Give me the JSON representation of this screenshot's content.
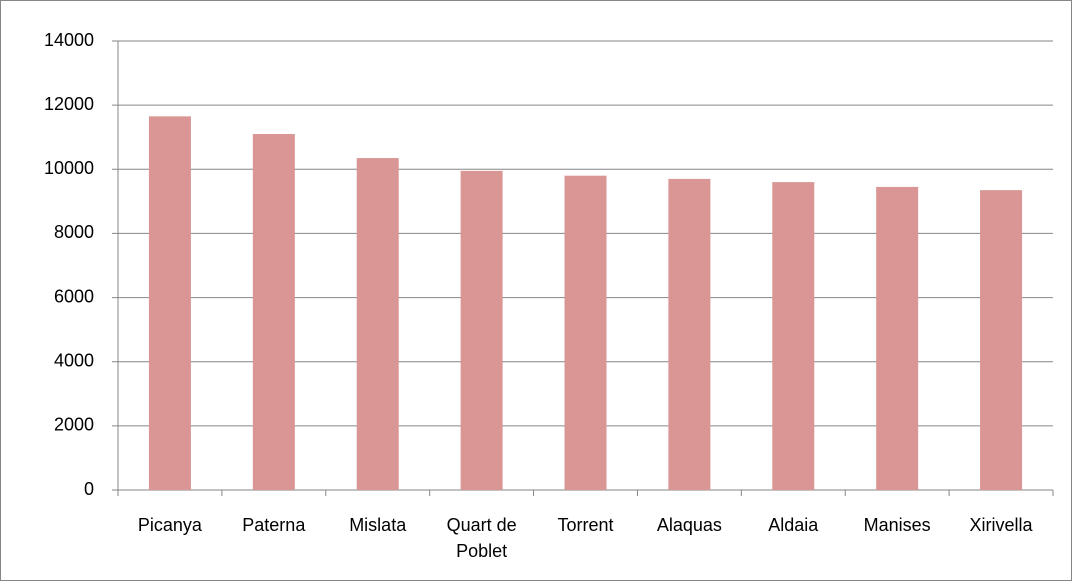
{
  "chart_data": {
    "type": "bar",
    "categories": [
      "Picanya",
      "Paterna",
      "Mislata",
      "Quart de Poblet",
      "Torrent",
      "Alaquas",
      "Aldaia",
      "Manises",
      "Xirivella"
    ],
    "values": [
      11650,
      11100,
      10350,
      9950,
      9800,
      9700,
      9600,
      9450,
      9350
    ],
    "color": "#d99694",
    "ylim": [
      0,
      14000
    ],
    "yticks": [
      0,
      2000,
      4000,
      6000,
      8000,
      10000,
      12000,
      14000
    ],
    "grid": true
  }
}
